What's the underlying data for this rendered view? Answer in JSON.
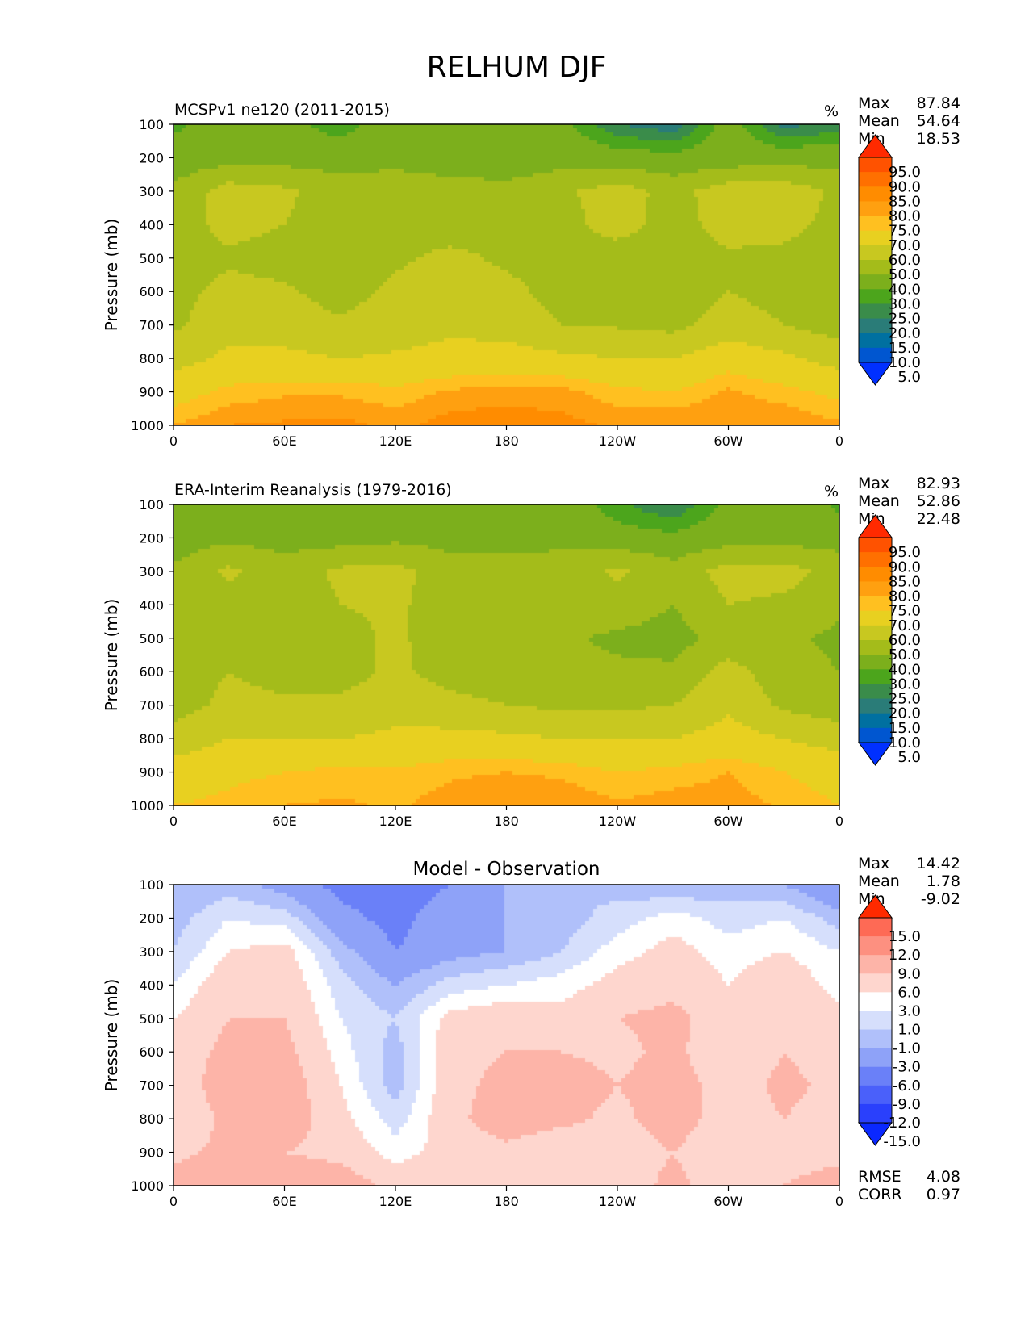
{
  "figure_title": "RELHUM DJF",
  "x_tick_labels": [
    "0",
    "60E",
    "120E",
    "180",
    "120W",
    "60W",
    "0"
  ],
  "y_tick_labels": [
    "100",
    "200",
    "300",
    "400",
    "500",
    "600",
    "700",
    "800",
    "900",
    "1000"
  ],
  "ylabel": "Pressure (mb)",
  "stat_labels": {
    "max": "Max",
    "mean": "Mean",
    "min": "Min",
    "rmse": "RMSE",
    "corr": "CORR"
  },
  "panels": [
    {
      "title": "MCSPv1 ne120 (2011-2015)",
      "units": "%",
      "max": "87.84",
      "mean": "54.64",
      "min": "18.53"
    },
    {
      "title": "ERA-Interim Reanalysis (1979-2016)",
      "units": "%",
      "max": "82.93",
      "mean": "52.86",
      "min": "22.48"
    },
    {
      "title": "Model - Observation",
      "units": "",
      "max": "14.42",
      "mean": "1.78",
      "min": "-9.02",
      "rmse": "4.08",
      "corr": "0.97"
    }
  ],
  "colorbars": {
    "field": {
      "labels": [
        "95.0",
        "90.0",
        "85.0",
        "80.0",
        "75.0",
        "70.0",
        "60.0",
        "50.0",
        "40.0",
        "30.0",
        "25.0",
        "20.0",
        "15.0",
        "10.0",
        "5.0"
      ],
      "colors": [
        "#ff2a00",
        "#ff5200",
        "#ff7000",
        "#ff8c00",
        "#ffa010",
        "#ffc020",
        "#e8d020",
        "#c8c820",
        "#a4bc1a",
        "#7caf1c",
        "#4ca51c",
        "#3a8c4a",
        "#2a7c78",
        "#0070a0",
        "#0056d0",
        "#0030ff"
      ]
    },
    "diff": {
      "labels": [
        "15.0",
        "12.0",
        "9.0",
        "6.0",
        "3.0",
        "1.0",
        "-1.0",
        "-3.0",
        "-6.0",
        "-9.0",
        "-12.0",
        "-15.0"
      ],
      "colors": [
        "#ff2a00",
        "#fe6a55",
        "#fd9080",
        "#fdb4a8",
        "#fed6ce",
        "#ffffff",
        "#d6dffc",
        "#b0c0fa",
        "#8ea2f8",
        "#6a80f8",
        "#4a60fa",
        "#2a40fc",
        "#0a28ff"
      ]
    }
  },
  "chart_data": [
    {
      "type": "heatmap",
      "title": "MCSPv1 ne120 (2011-2015)",
      "x_ticks": [
        "0",
        "60E",
        "120E",
        "180",
        "120W",
        "60W",
        "0"
      ],
      "y_ticks": [
        100,
        200,
        300,
        400,
        500,
        600,
        700,
        800,
        900,
        1000
      ],
      "xlim": [
        0,
        360
      ],
      "ylim": [
        1000,
        100
      ],
      "ylabel": "Pressure (mb)",
      "levels": [
        5,
        10,
        15,
        20,
        25,
        30,
        40,
        50,
        60,
        70,
        75,
        80,
        85,
        90,
        95
      ],
      "x": [
        0,
        30,
        60,
        90,
        120,
        150,
        180,
        210,
        240,
        270,
        300,
        330,
        360
      ],
      "y": [
        100,
        200,
        300,
        400,
        500,
        600,
        700,
        800,
        900,
        1000
      ],
      "z": [
        [
          28,
          36,
          33,
          26,
          36,
          34,
          37,
          32,
          20,
          16,
          34,
          18,
          22
        ],
        [
          34,
          36,
          36,
          36,
          38,
          35,
          32,
          36,
          34,
          33,
          34,
          35,
          36
        ],
        [
          42,
          55,
          52,
          44,
          44,
          44,
          44,
          48,
          55,
          46,
          56,
          56,
          48
        ],
        [
          44,
          54,
          50,
          46,
          45,
          44,
          44,
          46,
          55,
          45,
          55,
          54,
          46
        ],
        [
          45,
          48,
          45,
          42,
          48,
          53,
          48,
          45,
          44,
          44,
          48,
          47,
          43
        ],
        [
          46,
          54,
          52,
          45,
          53,
          56,
          53,
          46,
          45,
          44,
          50,
          46,
          44
        ],
        [
          48,
          57,
          56,
          52,
          56,
          58,
          56,
          50,
          49,
          47,
          55,
          50,
          45
        ],
        [
          56,
          62,
          62,
          60,
          61,
          63,
          64,
          62,
          60,
          60,
          66,
          62,
          56
        ],
        [
          66,
          72,
          74,
          74,
          72,
          76,
          78,
          77,
          72,
          70,
          76,
          72,
          68
        ],
        [
          75,
          80,
          81,
          82,
          78,
          83,
          83,
          82,
          79,
          80,
          80,
          80,
          76
        ]
      ]
    },
    {
      "type": "heatmap",
      "title": "ERA-Interim Reanalysis (1979-2016)",
      "x_ticks": [
        "0",
        "60E",
        "120E",
        "180",
        "120W",
        "60W",
        "0"
      ],
      "y_ticks": [
        100,
        200,
        300,
        400,
        500,
        600,
        700,
        800,
        900,
        1000
      ],
      "xlim": [
        0,
        360
      ],
      "ylim": [
        1000,
        100
      ],
      "ylabel": "Pressure (mb)",
      "levels": [
        5,
        10,
        15,
        20,
        25,
        30,
        40,
        50,
        60,
        70,
        75,
        80,
        85,
        90,
        95
      ],
      "x": [
        0,
        30,
        60,
        90,
        120,
        150,
        180,
        210,
        240,
        270,
        300,
        330,
        360
      ],
      "y": [
        100,
        200,
        300,
        400,
        500,
        600,
        700,
        800,
        900,
        1000
      ],
      "z": [
        [
          30,
          38,
          38,
          38,
          38,
          40,
          40,
          36,
          26,
          20,
          32,
          38,
          28
        ],
        [
          34,
          38,
          36,
          36,
          38,
          36,
          36,
          38,
          34,
          32,
          36,
          36,
          36
        ],
        [
          42,
          52,
          44,
          52,
          53,
          45,
          44,
          44,
          52,
          44,
          54,
          54,
          46
        ],
        [
          42,
          45,
          44,
          50,
          52,
          44,
          43,
          42,
          46,
          40,
          50,
          48,
          42
        ],
        [
          43,
          46,
          43,
          46,
          52,
          44,
          42,
          42,
          38,
          36,
          44,
          42,
          38
        ],
        [
          44,
          50,
          46,
          46,
          52,
          46,
          43,
          42,
          42,
          42,
          54,
          44,
          40
        ],
        [
          45,
          53,
          52,
          52,
          56,
          53,
          50,
          48,
          48,
          50,
          58,
          48,
          44
        ],
        [
          55,
          60,
          60,
          60,
          62,
          63,
          62,
          60,
          60,
          60,
          64,
          60,
          56
        ],
        [
          64,
          68,
          70,
          72,
          71,
          74,
          75,
          74,
          70,
          72,
          75,
          70,
          66
        ],
        [
          70,
          72,
          75,
          76,
          74,
          78,
          80,
          79,
          76,
          78,
          78,
          74,
          70
        ]
      ]
    },
    {
      "type": "heatmap",
      "title": "Model - Observation",
      "x_ticks": [
        "0",
        "60E",
        "120E",
        "180",
        "120W",
        "60W",
        "0"
      ],
      "y_ticks": [
        100,
        200,
        300,
        400,
        500,
        600,
        700,
        800,
        900,
        1000
      ],
      "xlim": [
        0,
        360
      ],
      "ylim": [
        1000,
        100
      ],
      "ylabel": "Pressure (mb)",
      "levels": [
        -15,
        -12,
        -9,
        -6,
        -3,
        -1,
        1,
        3,
        6,
        9,
        12,
        15
      ],
      "x": [
        0,
        30,
        60,
        90,
        120,
        150,
        180,
        210,
        240,
        270,
        300,
        330,
        360
      ],
      "y": [
        100,
        200,
        300,
        400,
        500,
        600,
        700,
        800,
        900,
        1000
      ],
      "z": [
        [
          -3,
          -2,
          -4,
          -7,
          -8,
          -6,
          -3,
          -1,
          -2,
          -3,
          -2,
          -3,
          -6
        ],
        [
          -2,
          1,
          0,
          -5,
          -7,
          -4,
          -3,
          -2,
          0,
          2,
          0,
          1,
          -2
        ],
        [
          -1,
          3,
          4,
          -2,
          -6,
          -4,
          -3,
          -1,
          2,
          4,
          2,
          3,
          1
        ],
        [
          1,
          5,
          5,
          0,
          -3,
          0,
          1,
          2,
          4,
          5,
          3,
          5,
          2
        ],
        [
          3,
          6,
          6,
          1,
          -1,
          4,
          5,
          4,
          6,
          7,
          4,
          6,
          4
        ],
        [
          4,
          7,
          7,
          2,
          -2,
          5,
          6,
          6,
          5,
          7,
          3,
          6,
          4
        ],
        [
          4,
          8,
          8,
          3,
          -2,
          5,
          7,
          8,
          6,
          8,
          4,
          7,
          5
        ],
        [
          3,
          7,
          8,
          4,
          0,
          5,
          8,
          7,
          5,
          8,
          4,
          6,
          4
        ],
        [
          5,
          7,
          6,
          5,
          2,
          4,
          5,
          3,
          4,
          6,
          3,
          3,
          4
        ],
        [
          8,
          9,
          9,
          8,
          5,
          6,
          6,
          3,
          4,
          7,
          4,
          6,
          9
        ]
      ]
    }
  ]
}
